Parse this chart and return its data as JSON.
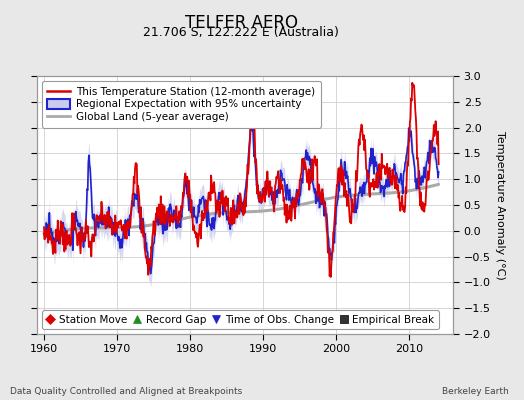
{
  "title": "TELFER AERO",
  "subtitle": "21.706 S, 122.222 E (Australia)",
  "ylabel": "Temperature Anomaly (°C)",
  "xlabel_bottom": "Data Quality Controlled and Aligned at Breakpoints",
  "xlabel_right": "Berkeley Earth",
  "xlim": [
    1959,
    2016
  ],
  "ylim": [
    -2.0,
    3.0
  ],
  "yticks": [
    -2.0,
    -1.5,
    -1.0,
    -0.5,
    0.0,
    0.5,
    1.0,
    1.5,
    2.0,
    2.5,
    3.0
  ],
  "xticks": [
    1960,
    1970,
    1980,
    1990,
    2000,
    2010
  ],
  "bg_color": "#e8e8e8",
  "plot_bg_color": "#ffffff",
  "grid_color": "#d0d0d0",
  "station_color": "#dd0000",
  "regional_color": "#2222cc",
  "regional_fill_color": "#c8ccee",
  "global_color": "#aaaaaa",
  "legend1_items": [
    {
      "label": "This Temperature Station (12-month average)",
      "color": "#dd0000",
      "lw": 1.8
    },
    {
      "label": "Regional Expectation with 95% uncertainty",
      "color": "#2222cc",
      "fill": "#c8ccee",
      "lw": 1.5
    },
    {
      "label": "Global Land (5-year average)",
      "color": "#aaaaaa",
      "lw": 2.0
    }
  ],
  "legend2_items": [
    {
      "label": "Station Move",
      "marker": "D",
      "color": "#dd0000"
    },
    {
      "label": "Record Gap",
      "marker": "^",
      "color": "#228B22"
    },
    {
      "label": "Time of Obs. Change",
      "marker": "v",
      "color": "#2222cc"
    },
    {
      "label": "Empirical Break",
      "marker": "s",
      "color": "#333333"
    }
  ],
  "title_fontsize": 12,
  "subtitle_fontsize": 9,
  "tick_fontsize": 8,
  "ylabel_fontsize": 8,
  "legend_fontsize": 7.5
}
